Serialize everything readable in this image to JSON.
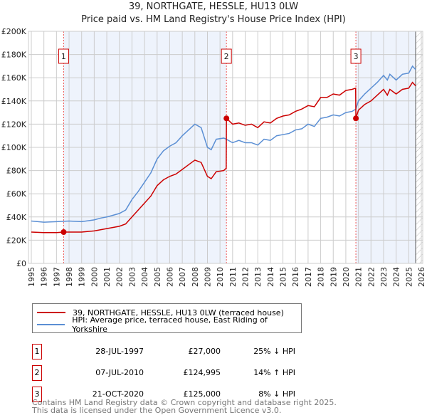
{
  "chart_data": {
    "type": "line",
    "title": "39, NORTHGATE, HESSLE, HU13 0LW",
    "subtitle": "Price paid vs. HM Land Registry's House Price Index (HPI)",
    "xlim": [
      1995,
      2026
    ],
    "ylim": [
      0,
      200000
    ],
    "x_ticks": [
      "1995",
      "1996",
      "1997",
      "1998",
      "1999",
      "2000",
      "2001",
      "2002",
      "2003",
      "2004",
      "2005",
      "2006",
      "2007",
      "2008",
      "2009",
      "2010",
      "2011",
      "2012",
      "2013",
      "2014",
      "2015",
      "2016",
      "2017",
      "2018",
      "2019",
      "2020",
      "2021",
      "2022",
      "2023",
      "2024",
      "2025",
      "2026"
    ],
    "y_ticks": [
      "£0",
      "£20K",
      "£40K",
      "£60K",
      "£80K",
      "£100K",
      "£120K",
      "£140K",
      "£160K",
      "£180K",
      "£200K"
    ],
    "grid": true,
    "series": [
      {
        "name": "39, NORTHGATE, HESSLE, HU13 0LW (terraced house)",
        "color": "#cc0000",
        "points": [
          [
            1995,
            27
          ],
          [
            1996,
            26.5
          ],
          [
            1997,
            26.5
          ],
          [
            1997.57,
            27
          ],
          [
            1998,
            27
          ],
          [
            1999,
            27
          ],
          [
            2000,
            28
          ],
          [
            2000.5,
            29
          ],
          [
            2001,
            30
          ],
          [
            2001.5,
            31
          ],
          [
            2002,
            32
          ],
          [
            2002.5,
            34
          ],
          [
            2003,
            40
          ],
          [
            2003.5,
            46
          ],
          [
            2004,
            52
          ],
          [
            2004.5,
            58
          ],
          [
            2005,
            67
          ],
          [
            2005.5,
            72
          ],
          [
            2006,
            75
          ],
          [
            2006.5,
            77
          ],
          [
            2007,
            81
          ],
          [
            2007.5,
            85
          ],
          [
            2008,
            89
          ],
          [
            2008.5,
            87
          ],
          [
            2009,
            75
          ],
          [
            2009.3,
            73
          ],
          [
            2009.7,
            79
          ],
          [
            2010.3,
            80
          ],
          [
            2010.49,
            82
          ],
          [
            2010.51,
            125
          ],
          [
            2011,
            120
          ],
          [
            2011.5,
            121
          ],
          [
            2012,
            119
          ],
          [
            2012.5,
            120
          ],
          [
            2013,
            117
          ],
          [
            2013.5,
            122
          ],
          [
            2014,
            121
          ],
          [
            2014.5,
            125
          ],
          [
            2015,
            127
          ],
          [
            2015.5,
            128
          ],
          [
            2016,
            131
          ],
          [
            2016.5,
            133
          ],
          [
            2017,
            136
          ],
          [
            2017.5,
            135
          ],
          [
            2018,
            143
          ],
          [
            2018.5,
            143
          ],
          [
            2019,
            146
          ],
          [
            2019.5,
            145
          ],
          [
            2020,
            149
          ],
          [
            2020.5,
            150
          ],
          [
            2020.78,
            151
          ],
          [
            2020.8,
            125
          ],
          [
            2021,
            132
          ],
          [
            2021.5,
            137
          ],
          [
            2022,
            140
          ],
          [
            2022.5,
            145
          ],
          [
            2023,
            150
          ],
          [
            2023.3,
            145
          ],
          [
            2023.5,
            150
          ],
          [
            2024,
            146
          ],
          [
            2024.5,
            150
          ],
          [
            2025,
            151
          ],
          [
            2025.3,
            156
          ],
          [
            2025.55,
            153
          ]
        ]
      },
      {
        "name": "HPI: Average price, terraced house, East Riding of Yorkshire",
        "color": "#5b8fd4",
        "points": [
          [
            1995,
            36.5
          ],
          [
            1996,
            35.5
          ],
          [
            1997,
            36
          ],
          [
            1998,
            36.5
          ],
          [
            1999,
            36
          ],
          [
            2000,
            37.5
          ],
          [
            2000.5,
            39
          ],
          [
            2001,
            40
          ],
          [
            2001.5,
            41.5
          ],
          [
            2002,
            43
          ],
          [
            2002.5,
            46
          ],
          [
            2003,
            55
          ],
          [
            2003.5,
            62
          ],
          [
            2004,
            70
          ],
          [
            2004.5,
            78
          ],
          [
            2005,
            90
          ],
          [
            2005.5,
            97
          ],
          [
            2006,
            101
          ],
          [
            2006.5,
            104
          ],
          [
            2007,
            110
          ],
          [
            2007.5,
            115
          ],
          [
            2008,
            120
          ],
          [
            2008.5,
            117
          ],
          [
            2009,
            100
          ],
          [
            2009.3,
            98
          ],
          [
            2009.7,
            107
          ],
          [
            2010.3,
            108
          ],
          [
            2010.5,
            107
          ],
          [
            2011,
            104
          ],
          [
            2011.5,
            106
          ],
          [
            2012,
            104
          ],
          [
            2012.5,
            104
          ],
          [
            2013,
            102
          ],
          [
            2013.5,
            107
          ],
          [
            2014,
            106
          ],
          [
            2014.5,
            110
          ],
          [
            2015,
            111
          ],
          [
            2015.5,
            112
          ],
          [
            2016,
            115
          ],
          [
            2016.5,
            116
          ],
          [
            2017,
            120
          ],
          [
            2017.5,
            118
          ],
          [
            2018,
            125
          ],
          [
            2018.5,
            126
          ],
          [
            2019,
            128
          ],
          [
            2019.5,
            127
          ],
          [
            2020,
            130
          ],
          [
            2020.5,
            131
          ],
          [
            2020.8,
            133
          ],
          [
            2021,
            140
          ],
          [
            2021.5,
            146
          ],
          [
            2022,
            151
          ],
          [
            2022.5,
            156
          ],
          [
            2023,
            162
          ],
          [
            2023.3,
            158
          ],
          [
            2023.5,
            163
          ],
          [
            2024,
            158
          ],
          [
            2024.5,
            163
          ],
          [
            2025,
            164
          ],
          [
            2025.3,
            170
          ],
          [
            2025.55,
            167
          ]
        ]
      }
    ],
    "value_unit": "thousands GBP",
    "shaded_ranges": [
      [
        1997.57,
        2010.51
      ],
      [
        2020.8,
        2025.55
      ]
    ],
    "hatched_after": 2025.55,
    "sales": [
      {
        "n": "1",
        "x": 1997.57,
        "y": 27,
        "date": "28-JUL-1997",
        "price": "£27,000",
        "hpi": "25% ↓ HPI"
      },
      {
        "n": "2",
        "x": 2010.51,
        "y": 124.995,
        "date": "07-JUL-2010",
        "price": "£124,995",
        "hpi": "14% ↑ HPI"
      },
      {
        "n": "3",
        "x": 2020.8,
        "y": 125,
        "date": "21-OCT-2020",
        "price": "£125,000",
        "hpi": "8% ↓ HPI"
      }
    ],
    "legend_position": "below"
  },
  "footer": [
    "Contains HM Land Registry data © Crown copyright and database right 2025.",
    "This data is licensed under the Open Government Licence v3.0."
  ]
}
